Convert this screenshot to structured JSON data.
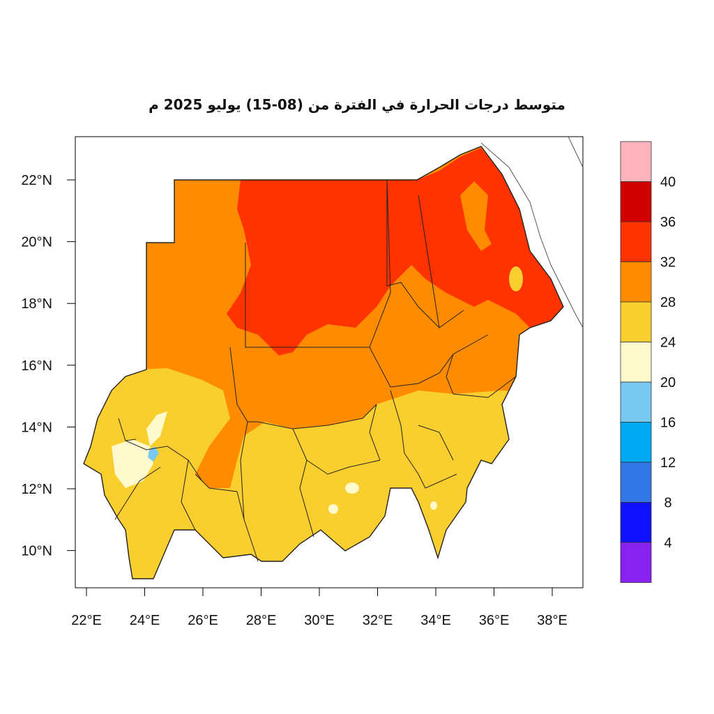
{
  "map": {
    "title": "متوسط درجات الحرارة في الفترة من (08-15) يوليو 2025 م",
    "lon_ticks": [
      "22°E",
      "24°E",
      "26°E",
      "28°E",
      "30°E",
      "32°E",
      "34°E",
      "36°E",
      "38°E"
    ],
    "lat_ticks": [
      "22°N",
      "20°N",
      "18°N",
      "16°N",
      "14°N",
      "12°N",
      "10°N"
    ],
    "lon_values": [
      22,
      24,
      26,
      28,
      30,
      32,
      34,
      36,
      38
    ],
    "lat_values": [
      22,
      20,
      18,
      16,
      14,
      12,
      10
    ],
    "extent": {
      "lon": [
        21.7,
        39.0
      ],
      "lat": [
        8.5,
        23.2
      ]
    }
  },
  "legend": {
    "labels": [
      "40",
      "36",
      "32",
      "28",
      "24",
      "20",
      "16",
      "12",
      "8",
      "4"
    ],
    "colors": [
      "#FFB3BD",
      "#D00000",
      "#FF3300",
      "#FF8C00",
      "#F9CF30",
      "#FFFACD",
      "#78C8F0",
      "#00AAF2",
      "#3377E6",
      "#1010FF",
      "#8822EE"
    ]
  }
}
